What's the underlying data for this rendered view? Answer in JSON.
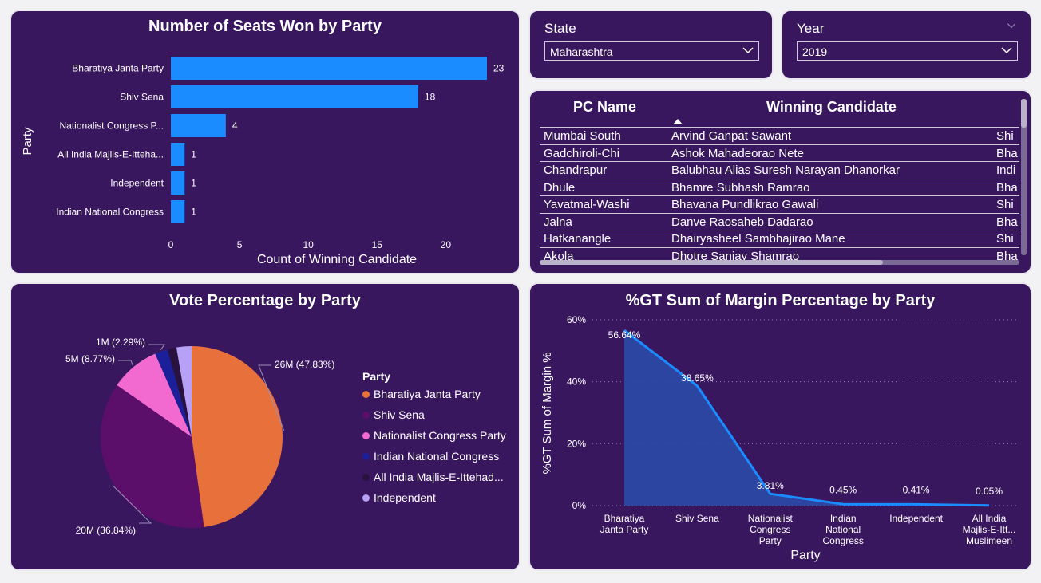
{
  "bar_panel": {
    "title": "Number of Seats Won by Party",
    "chart_data": {
      "type": "bar",
      "orientation": "horizontal",
      "categories": [
        "Bharatiya Janta Party",
        "Shiv Sena",
        "Nationalist Congress P...",
        "All India Majlis-E-Itteha...",
        "Independent",
        "Indian National Congress"
      ],
      "values": [
        23,
        18,
        4,
        1,
        1,
        1
      ],
      "data_labels": [
        "23",
        "18",
        "4",
        "1",
        "1",
        "1"
      ],
      "xlabel": "Count of Winning Candidate",
      "ylabel": "Party",
      "xlim": [
        0,
        25
      ],
      "x_ticks": [
        "0",
        "5",
        "10",
        "15",
        "20"
      ],
      "bar_color": "#1a8cff"
    }
  },
  "state_slicer": {
    "label": "State",
    "selected": "Maharashtra"
  },
  "year_slicer": {
    "label": "Year",
    "selected": "2019"
  },
  "table": {
    "headers": [
      "PC Name",
      "Winning Candidate"
    ],
    "rows": [
      {
        "pc": "Mumbai South",
        "candidate": "Arvind Ganpat Sawant",
        "party": "Shi"
      },
      {
        "pc": "Gadchiroli-Chi",
        "candidate": "Ashok Mahadeorao Nete",
        "party": "Bha"
      },
      {
        "pc": "Chandrapur",
        "candidate": "Balubhau Alias Suresh Narayan Dhanorkar",
        "party": "Indi"
      },
      {
        "pc": "Dhule",
        "candidate": "Bhamre Subhash Ramrao",
        "party": "Bha"
      },
      {
        "pc": "Yavatmal-Washi",
        "candidate": "Bhavana Pundlikrao Gawali",
        "party": "Shi"
      },
      {
        "pc": "Jalna",
        "candidate": "Danve Raosaheb Dadarao",
        "party": "Bha"
      },
      {
        "pc": "Hatkanangle",
        "candidate": "Dhairyasheel Sambhajirao Mane",
        "party": "Shi"
      },
      {
        "pc": "Akola",
        "candidate": "Dhotre Sanjay Shamrao",
        "party": "Bha"
      }
    ]
  },
  "pie_panel": {
    "title": "Vote Percentage by Party",
    "legend_title": "Party",
    "chart_data": {
      "type": "pie",
      "slices": [
        {
          "name": "Bharatiya Janta Party",
          "value": 47.83,
          "label": "26M (47.83%)",
          "color": "#e8703a"
        },
        {
          "name": "Shiv Sena",
          "value": 36.84,
          "label": "20M (36.84%)",
          "color": "#5c0e6b"
        },
        {
          "name": "Nationalist Congress Party",
          "value": 8.77,
          "label": "5M (8.77%)",
          "color": "#f26ad0"
        },
        {
          "name": "Indian National Congress",
          "value": 2.29,
          "label": "1M (2.29%)",
          "color": "#1c1f9a"
        },
        {
          "name": "All India Majlis-E-Ittehad...",
          "value": 1.6,
          "label": "",
          "color": "#2a1240"
        },
        {
          "name": "Independent",
          "value": 2.67,
          "label": "",
          "color": "#b7a1f7"
        }
      ]
    }
  },
  "area_panel": {
    "title": "%GT Sum of Margin Percentage by Party",
    "chart_data": {
      "type": "area",
      "categories": [
        [
          "Bharatiya",
          "Janta Party"
        ],
        [
          "Shiv Sena"
        ],
        [
          "Nationalist",
          "Congress",
          "Party"
        ],
        [
          "Indian",
          "National",
          "Congress"
        ],
        [
          "Independent"
        ],
        [
          "All India",
          "Majlis-E-Itt...",
          "Muslimeen"
        ]
      ],
      "values": [
        56.64,
        38.65,
        3.81,
        0.45,
        0.41,
        0.05
      ],
      "data_labels": [
        "56.64%",
        "38.65%",
        "3.81%",
        "0.45%",
        "0.41%",
        "0.05%"
      ],
      "xlabel": "Party",
      "ylabel": "%GT Sum of Margin %",
      "ylim": [
        0,
        60
      ],
      "y_ticks": [
        "0%",
        "20%",
        "40%",
        "60%"
      ],
      "line_color": "#1a8cff",
      "fill_color": "#2a4aa8"
    }
  }
}
